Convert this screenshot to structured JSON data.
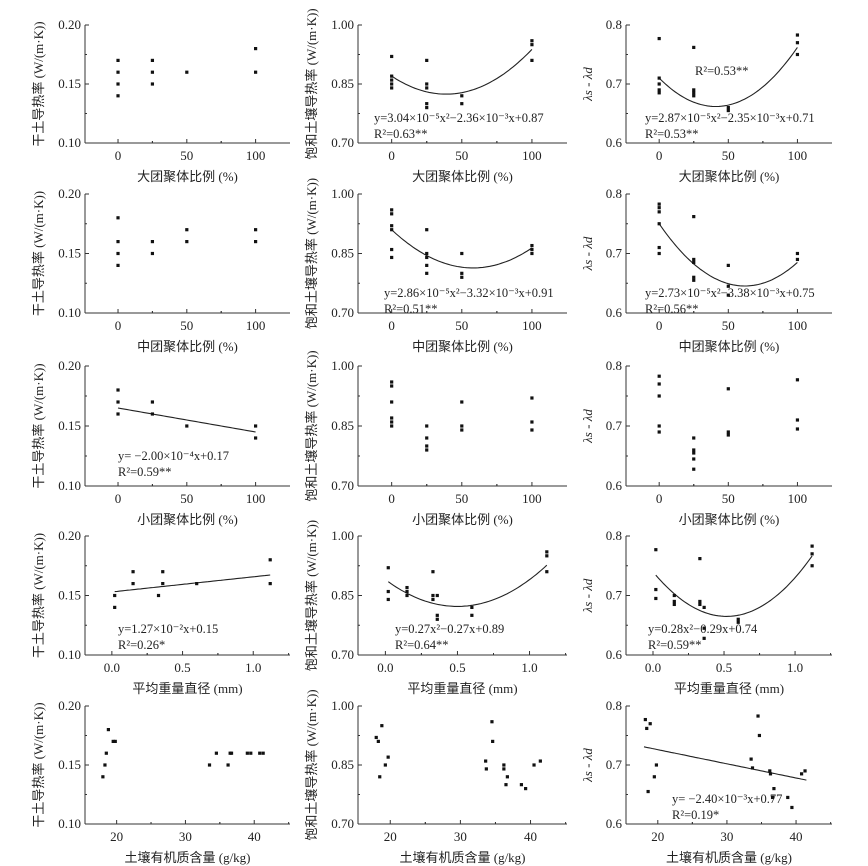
{
  "chart_data": [
    {
      "type": "scatter",
      "id": "p1",
      "ylabel": "干土导热率 (W/(m·K))",
      "xlabel": "大团聚体比例 (%)",
      "xlim": [
        -24,
        125
      ],
      "ylim": [
        0.1,
        0.2
      ],
      "xticks": [
        "0",
        "50",
        "100"
      ],
      "yticks": [
        "0.10",
        "0.15",
        "0.20"
      ],
      "points": [
        [
          0,
          0.17
        ],
        [
          0,
          0.16
        ],
        [
          0,
          0.15
        ],
        [
          0,
          0.14
        ],
        [
          25,
          0.17
        ],
        [
          25,
          0.16
        ],
        [
          25,
          0.15
        ],
        [
          50,
          0.16
        ],
        [
          100,
          0.18
        ],
        [
          100,
          0.16
        ]
      ],
      "fit": null,
      "annotations": []
    },
    {
      "type": "scatter",
      "id": "p2",
      "ylabel": "饱和土壤导热率 (W/(m·K))",
      "xlabel": "大团聚体比例 (%)",
      "xlim": [
        -24,
        125
      ],
      "ylim": [
        0.7,
        1.0
      ],
      "xticks": [
        "0",
        "50",
        "100"
      ],
      "yticks": [
        "0.70",
        "0.85",
        "1.00"
      ],
      "points": [
        [
          0,
          0.92
        ],
        [
          0,
          0.87
        ],
        [
          0,
          0.86
        ],
        [
          0,
          0.85
        ],
        [
          0,
          0.84
        ],
        [
          25,
          0.91
        ],
        [
          25,
          0.85
        ],
        [
          25,
          0.84
        ],
        [
          25,
          0.8
        ],
        [
          25,
          0.79
        ],
        [
          50,
          0.82
        ],
        [
          50,
          0.8
        ],
        [
          100,
          0.96
        ],
        [
          100,
          0.95
        ],
        [
          100,
          0.91
        ]
      ],
      "fit": {
        "coef": [
          3.04e-05,
          -0.00236,
          0.87
        ],
        "range": [
          0,
          100
        ]
      },
      "annotations": [
        "y=3.04×10⁻⁵x²−2.36×10⁻³x+0.87",
        "R²=0.63**"
      ]
    },
    {
      "type": "scatter",
      "id": "p3",
      "ylabel": "λs - λd",
      "xlabel": "大团聚体比例 (%)",
      "xlim": [
        -24,
        125
      ],
      "ylim": [
        0.6,
        0.8
      ],
      "xticks": [
        "0",
        "50",
        "100"
      ],
      "yticks": [
        "0.6",
        "0.7",
        "0.8"
      ],
      "points": [
        [
          0,
          0.777
        ],
        [
          0,
          0.71
        ],
        [
          0,
          0.7
        ],
        [
          0,
          0.69
        ],
        [
          0,
          0.685
        ],
        [
          25,
          0.762
        ],
        [
          25,
          0.69
        ],
        [
          25,
          0.685
        ],
        [
          25,
          0.68
        ],
        [
          50,
          0.66
        ],
        [
          50,
          0.655
        ],
        [
          100,
          0.783
        ],
        [
          100,
          0.77
        ],
        [
          100,
          0.75
        ]
      ],
      "fit": {
        "coef": [
          2.87e-05,
          -0.00235,
          0.71
        ],
        "range": [
          0,
          100
        ]
      },
      "annotations": [
        "y=2.87×10⁻⁵x²−2.35×10⁻³x+0.71",
        "R²=0.53**",
        "R²=0.53**"
      ]
    },
    {
      "type": "scatter",
      "id": "p4",
      "ylabel": "干土导热率 (W/(m·K))",
      "xlabel": "中团聚体比例 (%)",
      "xlim": [
        -24,
        125
      ],
      "ylim": [
        0.1,
        0.2
      ],
      "xticks": [
        "0",
        "50",
        "100"
      ],
      "yticks": [
        "0.10",
        "0.15",
        "0.20"
      ],
      "points": [
        [
          0,
          0.18
        ],
        [
          0,
          0.16
        ],
        [
          0,
          0.15
        ],
        [
          0,
          0.14
        ],
        [
          25,
          0.16
        ],
        [
          25,
          0.15
        ],
        [
          50,
          0.17
        ],
        [
          50,
          0.16
        ],
        [
          100,
          0.17
        ],
        [
          100,
          0.16
        ]
      ],
      "fit": null,
      "annotations": []
    },
    {
      "type": "scatter",
      "id": "p5",
      "ylabel": "饱和土壤导热率 (W/(m·K))",
      "xlabel": "中团聚体比例 (%)",
      "xlim": [
        -24,
        125
      ],
      "ylim": [
        0.7,
        1.0
      ],
      "xticks": [
        "0",
        "50",
        "100"
      ],
      "yticks": [
        "0.70",
        "0.85",
        "1.00"
      ],
      "points": [
        [
          0,
          0.96
        ],
        [
          0,
          0.95
        ],
        [
          0,
          0.92
        ],
        [
          0,
          0.91
        ],
        [
          0,
          0.86
        ],
        [
          0,
          0.84
        ],
        [
          25,
          0.91
        ],
        [
          25,
          0.85
        ],
        [
          25,
          0.84
        ],
        [
          25,
          0.82
        ],
        [
          25,
          0.8
        ],
        [
          50,
          0.85
        ],
        [
          50,
          0.8
        ],
        [
          50,
          0.79
        ],
        [
          100,
          0.87
        ],
        [
          100,
          0.86
        ],
        [
          100,
          0.85
        ]
      ],
      "fit": {
        "coef": [
          2.86e-05,
          -0.00332,
          0.91
        ],
        "range": [
          0,
          100
        ]
      },
      "annotations": [
        "y=2.86×10⁻⁵x²−3.32×10⁻³x+0.91",
        "R²=0.51**"
      ]
    },
    {
      "type": "scatter",
      "id": "p6",
      "ylabel": "λs - λd",
      "xlabel": "中团聚体比例 (%)",
      "xlim": [
        -24,
        125
      ],
      "ylim": [
        0.6,
        0.8
      ],
      "xticks": [
        "0",
        "50",
        "100"
      ],
      "yticks": [
        "0.6",
        "0.7",
        "0.8"
      ],
      "points": [
        [
          0,
          0.783
        ],
        [
          0,
          0.777
        ],
        [
          0,
          0.77
        ],
        [
          0,
          0.75
        ],
        [
          0,
          0.71
        ],
        [
          0,
          0.7
        ],
        [
          25,
          0.762
        ],
        [
          25,
          0.69
        ],
        [
          25,
          0.685
        ],
        [
          25,
          0.66
        ],
        [
          25,
          0.655
        ],
        [
          50,
          0.68
        ],
        [
          50,
          0.645
        ],
        [
          50,
          0.63
        ],
        [
          100,
          0.7
        ],
        [
          100,
          0.69
        ]
      ],
      "fit": {
        "coef": [
          2.73e-05,
          -0.00338,
          0.75
        ],
        "range": [
          0,
          100
        ]
      },
      "annotations": [
        "y=2.73×10⁻⁵x²−3.38×10⁻³x+0.75",
        "R²=0.56**"
      ]
    },
    {
      "type": "scatter",
      "id": "p7",
      "ylabel": "干土导热率 (W/(m·K))",
      "xlabel": "小团聚体比例 (%)",
      "xlim": [
        -24,
        125
      ],
      "ylim": [
        0.1,
        0.2
      ],
      "xticks": [
        "0",
        "50",
        "100"
      ],
      "yticks": [
        "0.10",
        "0.15",
        "0.20"
      ],
      "points": [
        [
          0,
          0.18
        ],
        [
          0,
          0.17
        ],
        [
          0,
          0.16
        ],
        [
          25,
          0.17
        ],
        [
          25,
          0.16
        ],
        [
          50,
          0.15
        ],
        [
          100,
          0.15
        ],
        [
          100,
          0.14
        ]
      ],
      "fit": {
        "coef": [
          0,
          -0.0002,
          0.165
        ],
        "range": [
          0,
          100
        ]
      },
      "annotations": [
        "y= −2.00×10⁻⁴x+0.17",
        "R²=0.59**"
      ]
    },
    {
      "type": "scatter",
      "id": "p8",
      "ylabel": "饱和土壤导热率 (W/(m·K))",
      "xlabel": "小团聚体比例 (%)",
      "xlim": [
        -24,
        125
      ],
      "ylim": [
        0.7,
        1.0
      ],
      "xticks": [
        "0",
        "50",
        "100"
      ],
      "yticks": [
        "0.70",
        "0.85",
        "1.00"
      ],
      "points": [
        [
          0,
          0.96
        ],
        [
          0,
          0.95
        ],
        [
          0,
          0.91
        ],
        [
          0,
          0.87
        ],
        [
          0,
          0.86
        ],
        [
          0,
          0.85
        ],
        [
          25,
          0.85
        ],
        [
          25,
          0.82
        ],
        [
          25,
          0.8
        ],
        [
          25,
          0.79
        ],
        [
          50,
          0.91
        ],
        [
          50,
          0.85
        ],
        [
          50,
          0.84
        ],
        [
          100,
          0.92
        ],
        [
          100,
          0.86
        ],
        [
          100,
          0.84
        ]
      ],
      "fit": null,
      "annotations": []
    },
    {
      "type": "scatter",
      "id": "p9",
      "ylabel": "λs - λd",
      "xlabel": "小团聚体比例 (%)",
      "xlim": [
        -24,
        125
      ],
      "ylim": [
        0.6,
        0.8
      ],
      "xticks": [
        "0",
        "50",
        "100"
      ],
      "yticks": [
        "0.6",
        "0.7",
        "0.8"
      ],
      "points": [
        [
          0,
          0.783
        ],
        [
          0,
          0.77
        ],
        [
          0,
          0.75
        ],
        [
          0,
          0.7
        ],
        [
          0,
          0.69
        ],
        [
          25,
          0.68
        ],
        [
          25,
          0.66
        ],
        [
          25,
          0.655
        ],
        [
          25,
          0.645
        ],
        [
          25,
          0.628
        ],
        [
          50,
          0.762
        ],
        [
          50,
          0.69
        ],
        [
          50,
          0.685
        ],
        [
          100,
          0.777
        ],
        [
          100,
          0.71
        ],
        [
          100,
          0.695
        ]
      ],
      "fit": null,
      "annotations": []
    },
    {
      "type": "scatter",
      "id": "p10",
      "ylabel": "干土导热率 (W/(m·K))",
      "xlabel": "平均重量直径 (mm)",
      "xlim": [
        -0.19,
        1.26
      ],
      "ylim": [
        0.1,
        0.2
      ],
      "xticks": [
        "0.0",
        "0.5",
        "1.0"
      ],
      "yticks": [
        "0.10",
        "0.15",
        "0.20"
      ],
      "points": [
        [
          0.02,
          0.15
        ],
        [
          0.02,
          0.14
        ],
        [
          0.15,
          0.17
        ],
        [
          0.15,
          0.16
        ],
        [
          0.33,
          0.15
        ],
        [
          0.36,
          0.17
        ],
        [
          0.36,
          0.16
        ],
        [
          0.6,
          0.16
        ],
        [
          1.12,
          0.18
        ],
        [
          1.12,
          0.16
        ]
      ],
      "fit": {
        "coef": [
          0,
          0.0127,
          0.153
        ],
        "range": [
          0.02,
          1.12
        ]
      },
      "annotations": [
        "y=1.27×10⁻²x+0.15",
        "R²=0.26*"
      ]
    },
    {
      "type": "scatter",
      "id": "p11",
      "ylabel": "饱和土壤导热率 (W/(m·K))",
      "xlabel": "平均重量直径 (mm)",
      "xlim": [
        -0.19,
        1.26
      ],
      "ylim": [
        0.7,
        1.0
      ],
      "xticks": [
        "0.0",
        "0.5",
        "1.0"
      ],
      "yticks": [
        "0.70",
        "0.85",
        "1.00"
      ],
      "points": [
        [
          0.02,
          0.92
        ],
        [
          0.02,
          0.86
        ],
        [
          0.02,
          0.84
        ],
        [
          0.15,
          0.87
        ],
        [
          0.15,
          0.86
        ],
        [
          0.15,
          0.85
        ],
        [
          0.33,
          0.91
        ],
        [
          0.33,
          0.85
        ],
        [
          0.33,
          0.84
        ],
        [
          0.36,
          0.85
        ],
        [
          0.36,
          0.8
        ],
        [
          0.36,
          0.79
        ],
        [
          0.6,
          0.82
        ],
        [
          0.6,
          0.8
        ],
        [
          1.12,
          0.96
        ],
        [
          1.12,
          0.95
        ],
        [
          1.12,
          0.91
        ]
      ],
      "fit": {
        "coef": [
          0.27,
          -0.27,
          0.89
        ],
        "range": [
          0.02,
          1.12
        ]
      },
      "annotations": [
        "y=0.27x²−0.27x+0.89",
        "R²=0.64**"
      ]
    },
    {
      "type": "scatter",
      "id": "p12",
      "ylabel": "λs - λd",
      "xlabel": "平均重量直径 (mm)",
      "xlim": [
        -0.19,
        1.26
      ],
      "ylim": [
        0.6,
        0.8
      ],
      "xticks": [
        "0.0",
        "0.5",
        "1.0"
      ],
      "yticks": [
        "0.6",
        "0.7",
        "0.8"
      ],
      "points": [
        [
          0.02,
          0.777
        ],
        [
          0.02,
          0.71
        ],
        [
          0.02,
          0.695
        ],
        [
          0.15,
          0.7
        ],
        [
          0.15,
          0.69
        ],
        [
          0.15,
          0.685
        ],
        [
          0.33,
          0.762
        ],
        [
          0.33,
          0.69
        ],
        [
          0.33,
          0.685
        ],
        [
          0.36,
          0.68
        ],
        [
          0.36,
          0.645
        ],
        [
          0.36,
          0.628
        ],
        [
          0.6,
          0.66
        ],
        [
          0.6,
          0.655
        ],
        [
          1.12,
          0.783
        ],
        [
          1.12,
          0.77
        ],
        [
          1.12,
          0.75
        ]
      ],
      "fit": {
        "coef": [
          0.28,
          -0.29,
          0.74
        ],
        "range": [
          0.02,
          1.12
        ]
      },
      "annotations": [
        "y=0.28x²−0.29x+0.74",
        "R²=0.59**"
      ]
    },
    {
      "type": "scatter",
      "id": "p13",
      "ylabel": "干土导热率 (W/(m·K))",
      "xlabel": "土壤有机质含量 (g/kg)",
      "xlim": [
        15.4,
        45.2
      ],
      "ylim": [
        0.1,
        0.2
      ],
      "xticks": [
        "20",
        "30",
        "40"
      ],
      "yticks": [
        "0.10",
        "0.15",
        "0.20"
      ],
      "points": [
        [
          18,
          0.14
        ],
        [
          18.3,
          0.15
        ],
        [
          18.5,
          0.16
        ],
        [
          18.8,
          0.18
        ],
        [
          19.5,
          0.17
        ],
        [
          19.8,
          0.17
        ],
        [
          33.5,
          0.15
        ],
        [
          34.5,
          0.16
        ],
        [
          36.2,
          0.15
        ],
        [
          36.5,
          0.16
        ],
        [
          36.7,
          0.16
        ],
        [
          39,
          0.16
        ],
        [
          39.5,
          0.16
        ],
        [
          40.8,
          0.16
        ],
        [
          41.3,
          0.16
        ]
      ],
      "fit": null,
      "annotations": []
    },
    {
      "type": "scatter",
      "id": "p14",
      "ylabel": "饱和土壤导热率 (W/(m·K))",
      "xlabel": "土壤有机质含量 (g/kg)",
      "xlim": [
        15.4,
        45.2
      ],
      "ylim": [
        0.7,
        1.0
      ],
      "xticks": [
        "20",
        "30",
        "40"
      ],
      "yticks": [
        "0.70",
        "0.85",
        "1.00"
      ],
      "points": [
        [
          18,
          0.92
        ],
        [
          18.3,
          0.91
        ],
        [
          18.5,
          0.82
        ],
        [
          18.8,
          0.95
        ],
        [
          19.3,
          0.85
        ],
        [
          19.7,
          0.87
        ],
        [
          33.6,
          0.86
        ],
        [
          33.7,
          0.84
        ],
        [
          34.5,
          0.96
        ],
        [
          34.6,
          0.91
        ],
        [
          36.2,
          0.85
        ],
        [
          36.2,
          0.84
        ],
        [
          36.5,
          0.8
        ],
        [
          36.7,
          0.82
        ],
        [
          38.7,
          0.8
        ],
        [
          39.3,
          0.79
        ],
        [
          40.5,
          0.85
        ],
        [
          41.4,
          0.86
        ]
      ],
      "fit": null,
      "annotations": []
    },
    {
      "type": "scatter",
      "id": "p15",
      "ylabel": "λs - λd",
      "xlabel": "土壤有机质含量 (g/kg)",
      "xlim": [
        15.4,
        45.2
      ],
      "ylim": [
        0.6,
        0.8
      ],
      "xticks": [
        "20",
        "30",
        "40"
      ],
      "yticks": [
        "0.6",
        "0.7",
        "0.8"
      ],
      "points": [
        [
          18.2,
          0.777
        ],
        [
          18.4,
          0.762
        ],
        [
          18.6,
          0.655
        ],
        [
          18.9,
          0.77
        ],
        [
          19.5,
          0.68
        ],
        [
          19.8,
          0.7
        ],
        [
          33.5,
          0.71
        ],
        [
          33.7,
          0.695
        ],
        [
          34.5,
          0.783
        ],
        [
          34.7,
          0.75
        ],
        [
          36.2,
          0.69
        ],
        [
          36.3,
          0.685
        ],
        [
          36.6,
          0.645
        ],
        [
          36.8,
          0.66
        ],
        [
          38.8,
          0.645
        ],
        [
          39.4,
          0.628
        ],
        [
          40.8,
          0.685
        ],
        [
          41.3,
          0.69
        ]
      ],
      "fit": {
        "coef": [
          0,
          -0.0024,
          0.774
        ],
        "range": [
          18,
          41.5
        ]
      },
      "annotations": [
        "y= −2.40×10⁻³x+0.77",
        "R²=0.19*"
      ]
    }
  ]
}
